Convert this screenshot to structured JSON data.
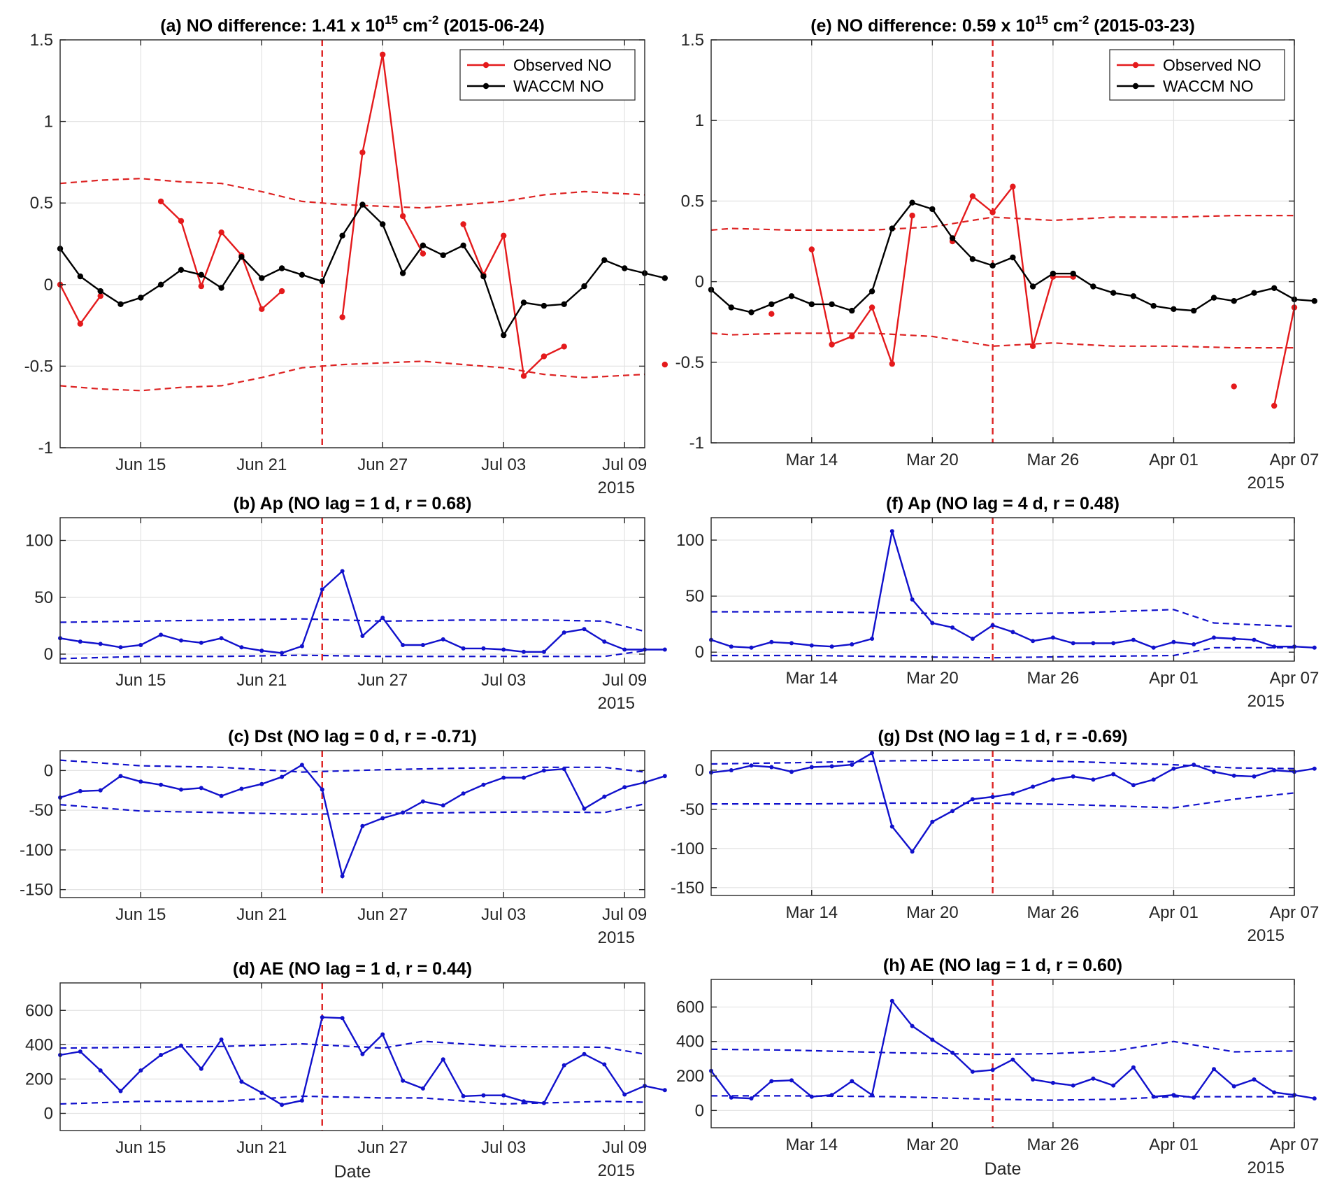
{
  "colors": {
    "observed": "#e41a1c",
    "waccm": "#000000",
    "index": "#1111cc",
    "event": "#dd2222",
    "grid": "#e3e3e3",
    "axis": "#262626"
  },
  "chart_data": [
    {
      "id": "a",
      "type": "line",
      "title": {
        "main": "(a) NO difference: 1.41 x 10",
        "sup1": "15",
        "mid": " cm",
        "sup2": "-2",
        "end": " (2015-06-24)"
      },
      "xlabel": "",
      "year_label": "2015",
      "ylabel": "",
      "x_start": "2015-06-11",
      "x_end": "2015-07-10",
      "event_date": "2015-06-24",
      "ylim": [
        -1,
        1.5
      ],
      "yticks": [
        -1,
        -0.5,
        0,
        0.5,
        1,
        1.5
      ],
      "ytick_labels": [
        "-1",
        "-0.5",
        "0",
        "0.5",
        "1",
        "1.5"
      ],
      "xticks": [
        "2015-06-15",
        "2015-06-21",
        "2015-06-27",
        "2015-07-03",
        "2015-07-09"
      ],
      "xtick_labels": [
        "Jun 15",
        "Jun 21",
        "Jun 27",
        "Jul 03",
        "Jul 09"
      ],
      "legend": {
        "position": "top-right",
        "entries": [
          "Observed NO",
          "WACCM NO"
        ]
      },
      "series": [
        {
          "name": "Observed NO",
          "role": "observed",
          "x0": "2015-06-11",
          "values": [
            0.0,
            -0.24,
            -0.07,
            null,
            null,
            0.51,
            0.39,
            -0.01,
            0.32,
            0.18,
            -0.15,
            -0.04,
            null,
            null,
            -0.2,
            0.81,
            1.41,
            0.42,
            0.19,
            null,
            0.37,
            0.06,
            0.3,
            -0.56,
            -0.44,
            -0.38,
            null,
            null,
            null,
            null,
            -0.49
          ]
        },
        {
          "name": "WACCM NO",
          "role": "waccm",
          "x0": "2015-06-11",
          "values": [
            0.22,
            0.05,
            -0.04,
            -0.12,
            -0.08,
            0.0,
            0.09,
            0.06,
            -0.02,
            0.17,
            0.04,
            0.1,
            0.06,
            0.02,
            0.3,
            0.49,
            0.37,
            0.07,
            0.24,
            0.18,
            0.24,
            0.05,
            -0.31,
            -0.11,
            -0.13,
            -0.12,
            -0.01,
            0.15,
            0.1,
            0.07,
            0.04
          ]
        }
      ],
      "bounds": {
        "x": [
          "2015-06-11",
          "2015-06-13",
          "2015-06-15",
          "2015-06-17",
          "2015-06-19",
          "2015-06-21",
          "2015-06-23",
          "2015-06-25",
          "2015-06-27",
          "2015-06-29",
          "2015-07-01",
          "2015-07-03",
          "2015-07-05",
          "2015-07-07",
          "2015-07-10"
        ],
        "upper": [
          0.62,
          0.64,
          0.65,
          0.63,
          0.62,
          0.57,
          0.51,
          0.49,
          0.48,
          0.47,
          0.49,
          0.51,
          0.55,
          0.57,
          0.55
        ],
        "lower": [
          -0.62,
          -0.64,
          -0.65,
          -0.63,
          -0.62,
          -0.57,
          -0.51,
          -0.49,
          -0.48,
          -0.47,
          -0.49,
          -0.51,
          -0.55,
          -0.57,
          -0.55
        ]
      }
    },
    {
      "id": "b",
      "type": "line",
      "title": {
        "main": "(b) Ap (NO lag = 1 d, r =  0.68)"
      },
      "xlabel": "",
      "year_label": "2015",
      "x_start": "2015-06-11",
      "x_end": "2015-07-10",
      "event_date": "2015-06-24",
      "ylim": [
        -8,
        120
      ],
      "yticks": [
        0,
        50,
        100
      ],
      "ytick_labels": [
        "0",
        "50",
        "100"
      ],
      "xticks": [
        "2015-06-15",
        "2015-06-21",
        "2015-06-27",
        "2015-07-03",
        "2015-07-09"
      ],
      "xtick_labels": [
        "Jun 15",
        "Jun 21",
        "Jun 27",
        "Jul 03",
        "Jul 09"
      ],
      "series": [
        {
          "name": "",
          "role": "index",
          "x0": "2015-06-11",
          "values": [
            14,
            11,
            9,
            6,
            8,
            17,
            12,
            10,
            14,
            6,
            3,
            1,
            7,
            57,
            73,
            16,
            32,
            8,
            8,
            13,
            5,
            5,
            4,
            2,
            2,
            19,
            22,
            11,
            4,
            4,
            4
          ]
        }
      ],
      "bounds": {
        "x": [
          "2015-06-11",
          "2015-06-15",
          "2015-06-19",
          "2015-06-23",
          "2015-06-27",
          "2015-07-01",
          "2015-07-05",
          "2015-07-08",
          "2015-07-10"
        ],
        "upper": [
          28,
          29,
          30,
          31,
          29,
          30,
          30,
          29,
          20
        ],
        "lower": [
          -4,
          -2,
          -2,
          -1,
          -2,
          -2,
          -2,
          -2,
          3
        ]
      }
    },
    {
      "id": "c",
      "type": "line",
      "title": {
        "main": "(c) Dst (NO lag = 0 d, r = -0.71)"
      },
      "xlabel": "",
      "year_label": "2015",
      "x_start": "2015-06-11",
      "x_end": "2015-07-10",
      "event_date": "2015-06-24",
      "ylim": [
        -160,
        25
      ],
      "yticks": [
        -150,
        -100,
        -50,
        0
      ],
      "ytick_labels": [
        "-150",
        "-100",
        "-50",
        "0"
      ],
      "xticks": [
        "2015-06-15",
        "2015-06-21",
        "2015-06-27",
        "2015-07-03",
        "2015-07-09"
      ],
      "xtick_labels": [
        "Jun 15",
        "Jun 21",
        "Jun 27",
        "Jul 03",
        "Jul 09"
      ],
      "series": [
        {
          "name": "",
          "role": "index",
          "x0": "2015-06-11",
          "values": [
            -34,
            -26,
            -25,
            -7,
            -14,
            -18,
            -24,
            -22,
            -32,
            -23,
            -17,
            -8,
            7,
            -24,
            -133,
            -70,
            -60,
            -53,
            -39,
            -44,
            -29,
            -18,
            -9,
            -9,
            0,
            2,
            -48,
            -33,
            -21,
            -15,
            -7
          ]
        }
      ],
      "bounds": {
        "x": [
          "2015-06-11",
          "2015-06-15",
          "2015-06-19",
          "2015-06-23",
          "2015-06-27",
          "2015-07-01",
          "2015-07-05",
          "2015-07-08",
          "2015-07-10"
        ],
        "upper": [
          13,
          6,
          4,
          -2,
          1,
          3,
          4,
          4,
          -2
        ],
        "lower": [
          -43,
          -51,
          -53,
          -55,
          -54,
          -53,
          -52,
          -53,
          -42
        ]
      }
    },
    {
      "id": "d",
      "type": "line",
      "title": {
        "main": "(d) AE (NO lag = 1 d, r =  0.44)"
      },
      "xlabel": "Date",
      "year_label": "2015",
      "x_start": "2015-06-11",
      "x_end": "2015-07-10",
      "event_date": "2015-06-24",
      "ylim": [
        -100,
        760
      ],
      "yticks": [
        0,
        200,
        400,
        600
      ],
      "ytick_labels": [
        "0",
        "200",
        "400",
        "600"
      ],
      "xticks": [
        "2015-06-15",
        "2015-06-21",
        "2015-06-27",
        "2015-07-03",
        "2015-07-09"
      ],
      "xtick_labels": [
        "Jun 15",
        "Jun 21",
        "Jun 27",
        "Jul 03",
        "Jul 09"
      ],
      "series": [
        {
          "name": "",
          "role": "index",
          "x0": "2015-06-11",
          "values": [
            340,
            360,
            250,
            130,
            250,
            340,
            395,
            260,
            430,
            185,
            120,
            50,
            75,
            560,
            555,
            345,
            460,
            190,
            145,
            315,
            100,
            105,
            105,
            70,
            60,
            280,
            345,
            285,
            110,
            160,
            135
          ]
        }
      ],
      "bounds": {
        "x": [
          "2015-06-11",
          "2015-06-15",
          "2015-06-19",
          "2015-06-23",
          "2015-06-27",
          "2015-06-29",
          "2015-07-03",
          "2015-07-08",
          "2015-07-10"
        ],
        "upper": [
          380,
          385,
          390,
          405,
          380,
          420,
          390,
          385,
          345
        ],
        "lower": [
          55,
          70,
          70,
          100,
          90,
          90,
          55,
          70,
          65
        ]
      }
    },
    {
      "id": "e",
      "type": "line",
      "title": {
        "main": "(e) NO difference: 0.59 x 10",
        "sup1": "15",
        "mid": " cm",
        "sup2": "-2",
        "end": " (2015-03-23)"
      },
      "xlabel": "",
      "year_label": "2015",
      "x_start": "2015-03-09",
      "x_end": "2015-04-07",
      "event_date": "2015-03-23",
      "ylim": [
        -1,
        1.5
      ],
      "yticks": [
        -1,
        -0.5,
        0,
        0.5,
        1,
        1.5
      ],
      "ytick_labels": [
        "-1",
        "-0.5",
        "0",
        "0.5",
        "1",
        "1.5"
      ],
      "xticks": [
        "2015-03-14",
        "2015-03-20",
        "2015-03-26",
        "2015-04-01",
        "2015-04-07"
      ],
      "xtick_labels": [
        "Mar 14",
        "Mar 20",
        "Mar 26",
        "Apr 01",
        "Apr 07"
      ],
      "legend": {
        "position": "top-right",
        "entries": [
          "Observed NO",
          "WACCM NO"
        ]
      },
      "series": [
        {
          "name": "Observed NO",
          "role": "observed",
          "x0": "2015-03-09",
          "values": [
            null,
            null,
            null,
            -0.2,
            null,
            0.2,
            -0.39,
            -0.34,
            -0.16,
            -0.51,
            0.41,
            null,
            0.25,
            0.53,
            0.43,
            0.59,
            -0.4,
            0.03,
            0.03,
            null,
            null,
            null,
            null,
            null,
            null,
            null,
            -0.65,
            null,
            -0.77,
            -0.16
          ]
        },
        {
          "name": "WACCM NO",
          "role": "waccm",
          "x0": "2015-03-09",
          "values": [
            -0.05,
            -0.16,
            -0.19,
            -0.14,
            -0.09,
            -0.14,
            -0.14,
            -0.18,
            -0.06,
            0.33,
            0.49,
            0.45,
            0.27,
            0.14,
            0.1,
            0.15,
            -0.03,
            0.05,
            0.05,
            -0.03,
            -0.07,
            -0.09,
            -0.15,
            -0.17,
            -0.18,
            -0.1,
            -0.12,
            -0.07,
            -0.04,
            -0.11,
            -0.12
          ]
        }
      ],
      "bounds": {
        "x": [
          "2015-03-09",
          "2015-03-10",
          "2015-03-13",
          "2015-03-17",
          "2015-03-20",
          "2015-03-23",
          "2015-03-26",
          "2015-03-29",
          "2015-04-01",
          "2015-04-04",
          "2015-04-07"
        ],
        "upper": [
          0.32,
          0.33,
          0.32,
          0.32,
          0.34,
          0.4,
          0.38,
          0.4,
          0.4,
          0.41,
          0.41
        ],
        "lower": [
          -0.32,
          -0.33,
          -0.32,
          -0.32,
          -0.34,
          -0.4,
          -0.38,
          -0.4,
          -0.4,
          -0.41,
          -0.41
        ]
      }
    },
    {
      "id": "f",
      "type": "line",
      "title": {
        "main": "(f) Ap (NO lag = 4 d, r =  0.48)"
      },
      "xlabel": "",
      "year_label": "2015",
      "x_start": "2015-03-09",
      "x_end": "2015-04-07",
      "event_date": "2015-03-23",
      "ylim": [
        -8,
        120
      ],
      "yticks": [
        0,
        50,
        100
      ],
      "ytick_labels": [
        "0",
        "50",
        "100"
      ],
      "xticks": [
        "2015-03-14",
        "2015-03-20",
        "2015-03-26",
        "2015-04-01",
        "2015-04-07"
      ],
      "xtick_labels": [
        "Mar 14",
        "Mar 20",
        "Mar 26",
        "Apr 01",
        "Apr 07"
      ],
      "series": [
        {
          "name": "",
          "role": "index",
          "x0": "2015-03-09",
          "values": [
            11,
            5,
            4,
            9,
            8,
            6,
            5,
            7,
            12,
            108,
            47,
            26,
            22,
            12,
            24,
            18,
            10,
            13,
            8,
            8,
            8,
            11,
            4,
            9,
            7,
            13,
            12,
            11,
            5,
            5,
            4
          ]
        }
      ],
      "bounds": {
        "x": [
          "2015-03-09",
          "2015-03-14",
          "2015-03-18",
          "2015-03-23",
          "2015-03-27",
          "2015-04-01",
          "2015-04-03",
          "2015-04-07"
        ],
        "upper": [
          36,
          36,
          35,
          34,
          35,
          38,
          26,
          23
        ],
        "lower": [
          -3,
          -3,
          -4,
          -5,
          -4,
          -3,
          4,
          4
        ]
      }
    },
    {
      "id": "g",
      "type": "line",
      "title": {
        "main": "(g) Dst (NO lag = 1 d, r = -0.69)"
      },
      "xlabel": "",
      "year_label": "2015",
      "x_start": "2015-03-09",
      "x_end": "2015-04-07",
      "event_date": "2015-03-23",
      "ylim": [
        -160,
        25
      ],
      "yticks": [
        -150,
        -100,
        -50,
        0
      ],
      "ytick_labels": [
        "-150",
        "-100",
        "-50",
        "0"
      ],
      "xticks": [
        "2015-03-14",
        "2015-03-20",
        "2015-03-26",
        "2015-04-01",
        "2015-04-07"
      ],
      "xtick_labels": [
        "Mar 14",
        "Mar 20",
        "Mar 26",
        "Apr 01",
        "Apr 07"
      ],
      "series": [
        {
          "name": "",
          "role": "index",
          "x0": "2015-03-09",
          "values": [
            -3,
            0,
            6,
            4,
            -2,
            4,
            5,
            7,
            22,
            -72,
            -104,
            -66,
            -52,
            -37,
            -34,
            -30,
            -21,
            -12,
            -8,
            -12,
            -5,
            -19,
            -12,
            2,
            7,
            -2,
            -7,
            -8,
            0,
            -2,
            2
          ]
        }
      ],
      "bounds": {
        "x": [
          "2015-03-09",
          "2015-03-14",
          "2015-03-18",
          "2015-03-23",
          "2015-03-27",
          "2015-04-01",
          "2015-04-04",
          "2015-04-07"
        ],
        "upper": [
          8,
          10,
          12,
          13,
          11,
          7,
          3,
          2
        ],
        "lower": [
          -43,
          -43,
          -42,
          -42,
          -44,
          -48,
          -37,
          -29
        ]
      }
    },
    {
      "id": "h",
      "type": "line",
      "title": {
        "main": "(h) AE (NO lag = 1 d, r =  0.60)"
      },
      "xlabel": "Date",
      "year_label": "2015",
      "x_start": "2015-03-09",
      "x_end": "2015-04-07",
      "event_date": "2015-03-23",
      "ylim": [
        -100,
        760
      ],
      "yticks": [
        0,
        200,
        400,
        600
      ],
      "ytick_labels": [
        "0",
        "200",
        "400",
        "600"
      ],
      "xticks": [
        "2015-03-14",
        "2015-03-20",
        "2015-03-26",
        "2015-04-01",
        "2015-04-07"
      ],
      "xtick_labels": [
        "Mar 14",
        "Mar 20",
        "Mar 26",
        "Apr 01",
        "Apr 07"
      ],
      "series": [
        {
          "name": "",
          "role": "index",
          "x0": "2015-03-09",
          "values": [
            230,
            75,
            70,
            170,
            175,
            80,
            90,
            170,
            90,
            635,
            490,
            410,
            335,
            225,
            235,
            295,
            180,
            160,
            145,
            185,
            145,
            250,
            80,
            90,
            75,
            240,
            140,
            180,
            105,
            90,
            70
          ]
        }
      ],
      "bounds": {
        "x": [
          "2015-03-09",
          "2015-03-13",
          "2015-03-18",
          "2015-03-23",
          "2015-03-26",
          "2015-03-29",
          "2015-04-01",
          "2015-04-04",
          "2015-04-07"
        ],
        "upper": [
          355,
          350,
          335,
          325,
          330,
          345,
          400,
          340,
          345
        ],
        "lower": [
          85,
          85,
          80,
          65,
          60,
          65,
          80,
          80,
          80
        ]
      }
    }
  ]
}
